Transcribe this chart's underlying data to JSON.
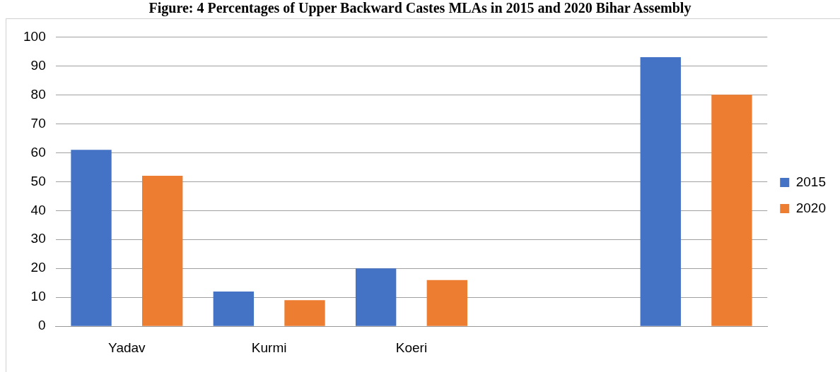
{
  "chart_data": {
    "type": "bar",
    "title": "Figure: 4 Percentages of Upper Backward Castes MLAs in 2015 and 2020 Bihar Assembly",
    "categories": [
      "Yadav",
      "Kurmi",
      "Koeri",
      null,
      null
    ],
    "series": [
      {
        "name": "2015",
        "color": "#4472c4",
        "values": [
          61,
          12,
          20,
          null,
          93
        ]
      },
      {
        "name": "2020",
        "color": "#ed7d31",
        "values": [
          52,
          9,
          16,
          null,
          80
        ]
      }
    ],
    "ylim": [
      0,
      100
    ],
    "yticks": [
      0,
      10,
      20,
      30,
      40,
      50,
      60,
      70,
      80,
      90,
      100
    ],
    "grid": "y",
    "legend": "right"
  }
}
